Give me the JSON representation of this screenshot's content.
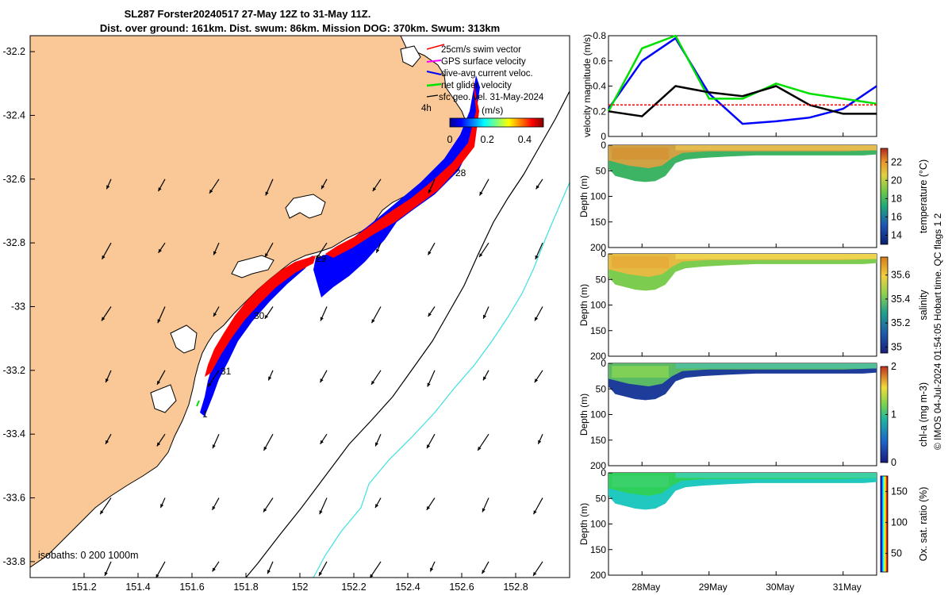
{
  "title": {
    "line1": "SL287 Forster20240517 27-May 12Z to 31-May 11Z.",
    "line2": "Dist. over ground: 161km. Dist. swum: 86km. Mission DOG: 370km. Swum: 313km"
  },
  "credit": "© IMOS 04-Jul-2024 01:54:05 Hobart time. QC flags 1  2",
  "chart_data": [
    {
      "type": "map",
      "name": "glider-track-map",
      "x_ticks": [
        "151.2",
        "151.4",
        "151.6",
        "151.8",
        "152",
        "152.2",
        "152.4",
        "152.6",
        "152.8"
      ],
      "y_ticks": [
        "-32.2",
        "-32.4",
        "-32.6",
        "-32.8",
        "-33",
        "-33.2",
        "-33.4",
        "-33.6",
        "-33.8"
      ],
      "xlim": [
        151.0,
        153.0
      ],
      "ylim": [
        -33.85,
        -32.15
      ],
      "legend": {
        "items": [
          "25cm/s swim vector",
          "GPS surface velocity",
          "dive-avg current veloc.",
          "net glider velocity",
          "sfc geo. vel. 31-May-2024"
        ],
        "scale_label": "4h"
      },
      "colorbar": {
        "label": "(m/s)",
        "ticks": [
          "0",
          "0.2",
          "0.4"
        ],
        "range": [
          0,
          0.5
        ]
      },
      "day_labels": [
        "1",
        "31",
        "30",
        "29",
        "28"
      ],
      "isobaths_label": "isobaths: 0   200  1000m",
      "colors": {
        "land": "#f9c896",
        "sea": "#ffffff",
        "swim": "#ff0000",
        "current": "#0000ff",
        "isobath_200": "#000000",
        "isobath_1000": "#3ee0e0"
      }
    },
    {
      "type": "line",
      "name": "velocity-magnitude",
      "ylabel": "velocity magnitude (m/s)",
      "ylim": [
        0,
        0.8
      ],
      "y_ticks": [
        "0",
        "0.2",
        "0.4",
        "0.6",
        "0.8"
      ],
      "x": [
        "27-May 12Z",
        "28-May",
        "28-May 12Z",
        "29-May",
        "29-May 12Z",
        "30-May",
        "30-May 12Z",
        "31-May",
        "31-May 11Z"
      ],
      "series": [
        {
          "color": "#0000ff",
          "values": [
            0.22,
            0.6,
            0.78,
            0.34,
            0.1,
            0.12,
            0.15,
            0.22,
            0.4
          ]
        },
        {
          "color": "#00e000",
          "values": [
            0.2,
            0.7,
            0.8,
            0.3,
            0.3,
            0.42,
            0.34,
            0.3,
            0.26
          ]
        },
        {
          "color": "#000000",
          "values": [
            0.2,
            0.16,
            0.4,
            0.35,
            0.32,
            0.4,
            0.25,
            0.18,
            0.18
          ]
        },
        {
          "color": "#ff0000",
          "values": [
            0.25,
            0.25,
            0.25,
            0.25,
            0.25,
            0.25,
            0.25,
            0.25,
            0.25
          ]
        }
      ]
    },
    {
      "type": "heatmap",
      "name": "temperature-section",
      "ylabel": "Depth (m)",
      "ylim": [
        200,
        0
      ],
      "y_ticks": [
        "0",
        "50",
        "100",
        "150",
        "200"
      ],
      "colorbar": {
        "label": "temperature (°C)",
        "ticks": [
          "14",
          "16",
          "18",
          "20",
          "22"
        ],
        "range": [
          13,
          23.5
        ]
      },
      "dominant_values": {
        "surface_west": 21,
        "surface_east": 21.5,
        "deep": 18
      }
    },
    {
      "type": "heatmap",
      "name": "salinity-section",
      "ylabel": "Depth (m)",
      "ylim": [
        200,
        0
      ],
      "y_ticks": [
        "0",
        "50",
        "100",
        "150",
        "200"
      ],
      "colorbar": {
        "label": "salinity",
        "ticks": [
          "35",
          "35.2",
          "35.4",
          "35.6"
        ],
        "range": [
          34.95,
          35.75
        ]
      },
      "dominant_values": {
        "surface_west": 35.55,
        "surface_east": 35.45,
        "deep": 35.35
      }
    },
    {
      "type": "heatmap",
      "name": "chl-a-section",
      "ylabel": "Depth (m)",
      "ylim": [
        200,
        0
      ],
      "y_ticks": [
        "0",
        "50",
        "100",
        "150",
        "200"
      ],
      "colorbar": {
        "label": "chl-a (mg m-3)",
        "ticks": [
          "0",
          "1",
          "2"
        ],
        "range": [
          0,
          2
        ]
      },
      "dominant_values": {
        "surface": 1.0,
        "deep": 0.2
      }
    },
    {
      "type": "heatmap",
      "name": "oxygen-saturation-section",
      "ylabel": "Depth (m)",
      "ylim": [
        200,
        0
      ],
      "y_ticks": [
        "0",
        "50",
        "100",
        "150",
        "200"
      ],
      "colorbar": {
        "label": "Ox. sat. ratio (%)",
        "ticks": [
          "50",
          "100",
          "150"
        ],
        "range": [
          20,
          175
        ]
      },
      "dominant_values": {
        "surface": 110,
        "deep": 90
      }
    }
  ],
  "time_axis": {
    "ticks": [
      "28May",
      "29May",
      "30May",
      "31May"
    ]
  }
}
